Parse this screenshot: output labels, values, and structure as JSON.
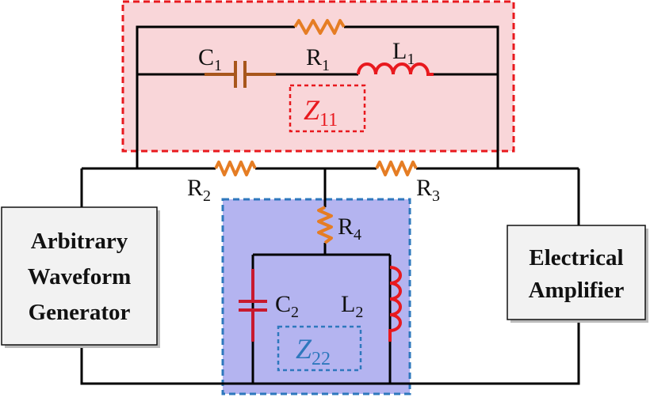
{
  "components": {
    "r1": {
      "name": "R",
      "sub": "1"
    },
    "r2": {
      "name": "R",
      "sub": "2"
    },
    "r3": {
      "name": "R",
      "sub": "3"
    },
    "r4": {
      "name": "R",
      "sub": "4"
    },
    "c1": {
      "name": "C",
      "sub": "1"
    },
    "c2": {
      "name": "C",
      "sub": "2"
    },
    "l1": {
      "name": "L",
      "sub": "1"
    },
    "l2": {
      "name": "L",
      "sub": "2"
    }
  },
  "regions": {
    "z11": {
      "name": "Z",
      "sub": "11",
      "color": "#e8191e",
      "fill": "#f9d6d9"
    },
    "z22": {
      "name": "Z",
      "sub": "22",
      "color": "#2e78bd",
      "fill": "#b4b4f0"
    }
  },
  "blocks": {
    "generator": {
      "lines": [
        "Arbitrary",
        "Waveform",
        "Generator"
      ]
    },
    "amplifier": {
      "lines": [
        "Electrical",
        "Amplifier"
      ]
    }
  },
  "colors": {
    "wire": "#000000",
    "resistor": "#e57d24",
    "capacitor_c1": "#a8561c",
    "inductor": "#e8191e",
    "capacitor_c2": "#c8192e"
  }
}
